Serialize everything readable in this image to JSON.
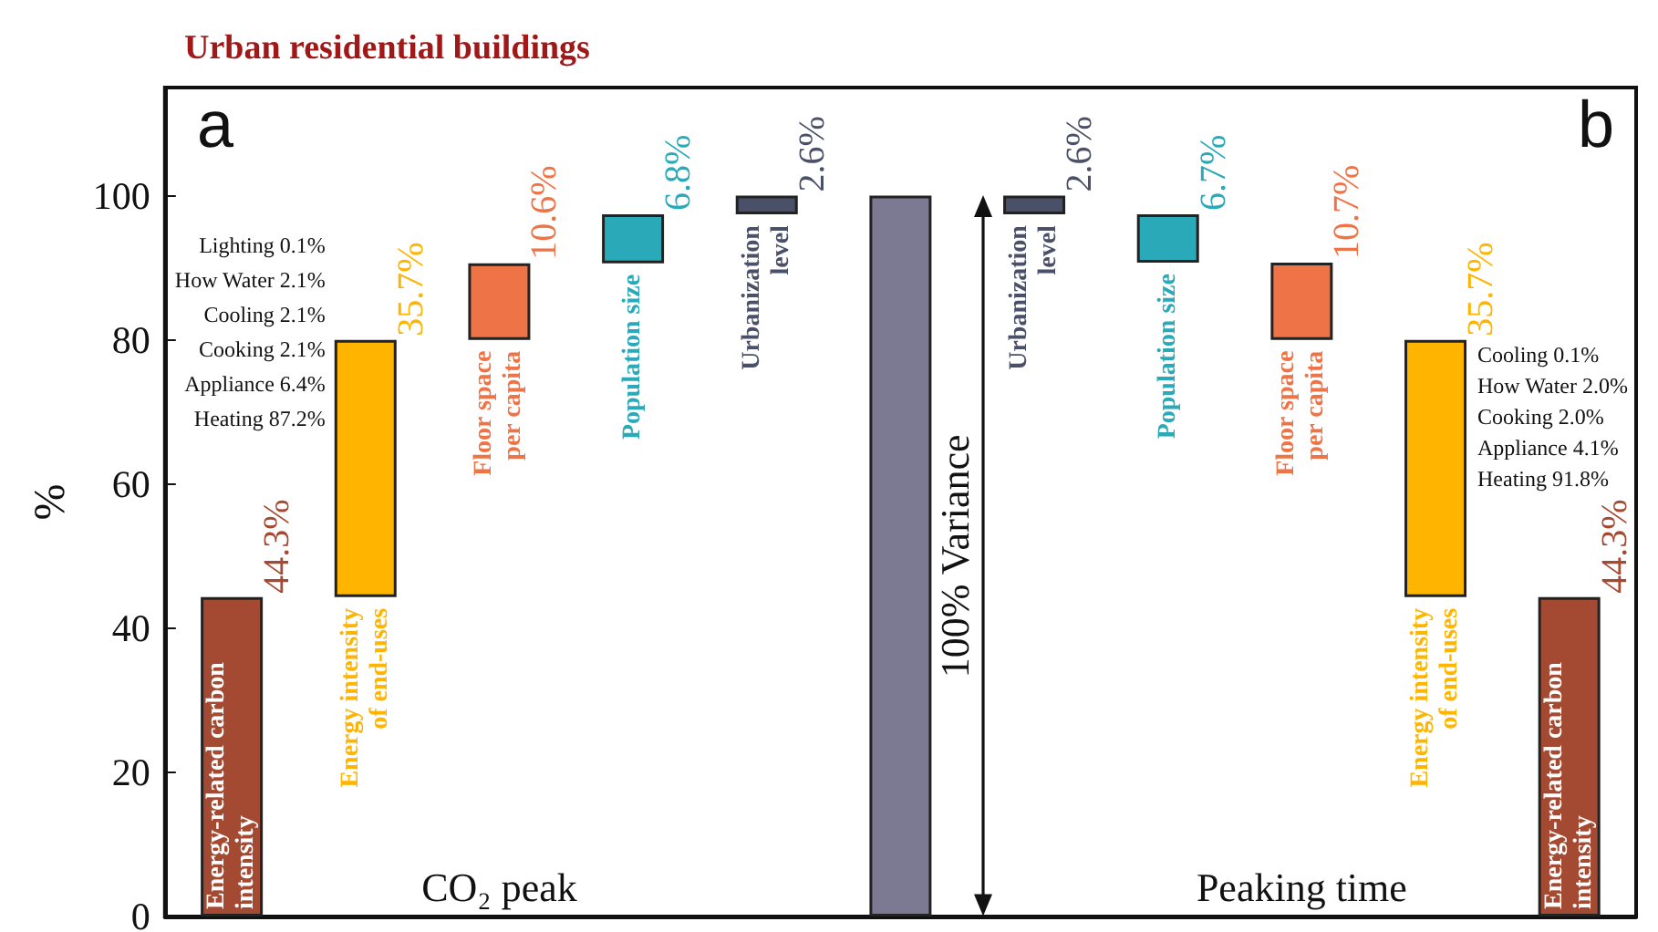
{
  "chart_data": {
    "type": "bar",
    "title": "Urban residential buildings",
    "ylabel": "%",
    "categories": [
      "Energy-related carbon intensity",
      "Energy intensity of end-uses",
      "Floor space per capita",
      "Population size",
      "Urbanization level",
      null,
      "Urbanization level",
      "Population size",
      "Floor space per capita",
      "Energy intensity of end-uses",
      "Energy-related carbon intensity"
    ],
    "values": [
      44.3,
      35.7,
      10.6,
      6.8,
      2.6,
      100,
      2.6,
      6.7,
      10.7,
      35.7,
      44.3
    ],
    "base": [
      0,
      44.3,
      80,
      90.6,
      97.4,
      0,
      97.4,
      90.7,
      80,
      44.3,
      0
    ],
    "colors": [
      "#a44a32",
      "#ffb400",
      "#ee7447",
      "#2aa9b8",
      "#4a5068",
      "#7c7a92",
      "#4a5068",
      "#2aa9b8",
      "#ee7447",
      "#ffb400",
      "#a44a32"
    ],
    "value_labels": [
      "44.3%",
      "35.7%",
      "10.6%",
      "6.8%",
      "2.6%",
      null,
      "2.6%",
      "6.7%",
      "10.7%",
      "35.7%",
      "44.3%"
    ],
    "ylim": [
      0,
      115
    ],
    "yticks": [
      0,
      20,
      40,
      60,
      80,
      100
    ],
    "tick_labels": "y",
    "annotations": [
      "a",
      "b",
      "CO₂ peak",
      "Peaking time",
      "100% Variance",
      "Lighting 0.1%",
      "How Water 2.1%",
      "Cooling 2.1%",
      "Cooking 2.1%",
      "Appliance 6.4%",
      "Heating 87.2%",
      "Cooling 0.1%",
      "How Water 2.0%",
      "Cooking 2.0%",
      "Appliance 4.1%",
      "Heating 91.8%"
    ]
  }
}
